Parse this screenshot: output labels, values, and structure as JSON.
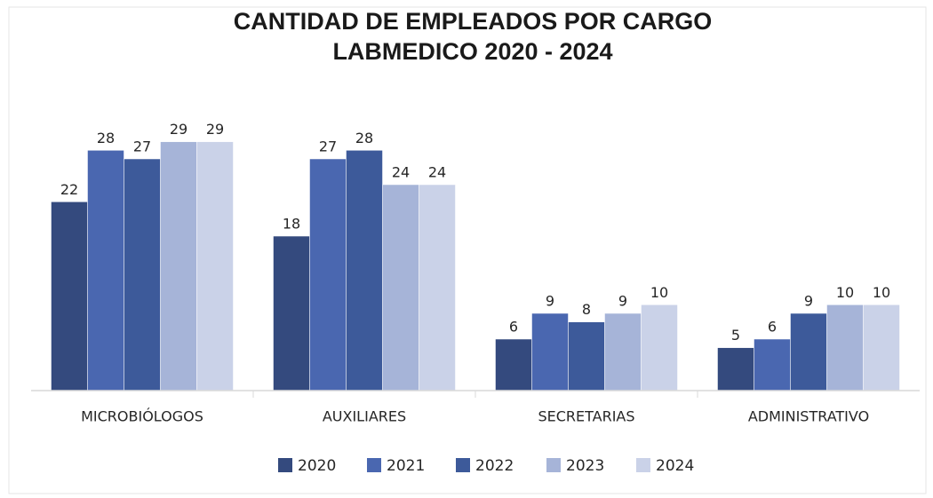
{
  "chart_data": {
    "type": "bar",
    "title": [
      "CANTIDAD DE EMPLEADOS POR CARGO",
      "LABMEDICO 2020 - 2024"
    ],
    "categories": [
      "MICROBIÓLOGOS",
      "AUXILIARES",
      "SECRETARIAS",
      "ADMINISTRATIVO"
    ],
    "series": [
      {
        "name": "2020",
        "color": "#344a7e",
        "values": [
          22,
          18,
          6,
          5
        ]
      },
      {
        "name": "2021",
        "color": "#4a67b0",
        "values": [
          28,
          27,
          9,
          6
        ]
      },
      {
        "name": "2022",
        "color": "#3d5a9a",
        "values": [
          27,
          28,
          8,
          9
        ]
      },
      {
        "name": "2023",
        "color": "#a6b4d8",
        "values": [
          29,
          24,
          9,
          10
        ]
      },
      {
        "name": "2024",
        "color": "#cad2e8",
        "values": [
          29,
          24,
          10,
          10
        ]
      }
    ],
    "ylim": [
      0,
      30
    ],
    "legend": "bottom"
  }
}
